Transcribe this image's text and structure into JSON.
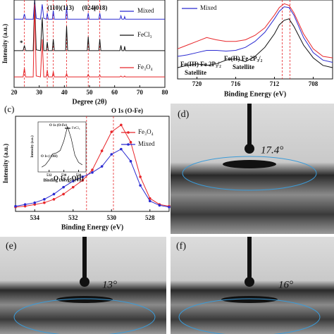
{
  "chart_data": [
    {
      "type": "line",
      "xlabel": "Degree (2θ)",
      "ylabel": "Intensity (a.u.)",
      "xlim": [
        20,
        80
      ],
      "ylim": [
        0,
        100
      ],
      "xticks": [
        20,
        30,
        40,
        50,
        60,
        70,
        80
      ],
      "x": [
        20,
        22,
        23.6,
        24.1,
        24.6,
        26,
        27.6,
        28.2,
        28.8,
        30.5,
        31.2,
        31.8,
        32.8,
        33.2,
        33.6,
        35.2,
        35.6,
        36,
        38,
        40.5,
        40.9,
        41.3,
        45,
        49.1,
        49.5,
        49.9,
        53.7,
        54.1,
        54.5,
        58,
        62.1,
        62.5,
        62.9,
        63.7,
        64,
        64.3,
        70,
        75,
        80
      ],
      "series": [
        {
          "name": "Mixed",
          "color": "#2b2bd1",
          "values": [
            78,
            78,
            78,
            84,
            78,
            78,
            78,
            100,
            79,
            78,
            95,
            79,
            78,
            85,
            78,
            78,
            88,
            78,
            78,
            78,
            92,
            78,
            78,
            78,
            85,
            78,
            78,
            85,
            78,
            78,
            78,
            82,
            78,
            78,
            81,
            78,
            78,
            78,
            78
          ]
        },
        {
          "name": "FeCl₃",
          "color": "#111111",
          "values": [
            42,
            42,
            42,
            48,
            42,
            42,
            42,
            100,
            43,
            42,
            80,
            42,
            42,
            52,
            42,
            42,
            55,
            42,
            42,
            42,
            70,
            42,
            42,
            42,
            58,
            42,
            42,
            55,
            42,
            42,
            42,
            48,
            42,
            42,
            47,
            42,
            42,
            42,
            42
          ]
        },
        {
          "name": "Fe₃O₄",
          "color": "#e8262a",
          "values": [
            12,
            12,
            12,
            22,
            12,
            12,
            12,
            95,
            13,
            12,
            55,
            12,
            12,
            20,
            12,
            12,
            18,
            12,
            12,
            12,
            16,
            12,
            12,
            12,
            15,
            12,
            12,
            14,
            12,
            12,
            12,
            13,
            12,
            12,
            13,
            12,
            12,
            12,
            12
          ]
        }
      ],
      "reference_lines": [
        24.1,
        33.2,
        35.6,
        40.9,
        49.5,
        54.1
      ],
      "peak_labels": [
        {
          "text": "(110)",
          "x": 35.6
        },
        {
          "text": "(113)",
          "x": 40.9
        },
        {
          "text": "(024)",
          "x": 49.5
        },
        {
          "text": "(018)",
          "x": 54.1
        }
      ],
      "annotations": [
        {
          "text": "*",
          "color": "#111111"
        }
      ]
    },
    {
      "type": "line",
      "xlabel": "Binding Energy (eV)",
      "xlim": [
        722,
        706
      ],
      "ylim": [
        0,
        105
      ],
      "xticks": [
        720,
        716,
        712,
        708
      ],
      "x": [
        722,
        721,
        720,
        719,
        718,
        717,
        716,
        715,
        714,
        713,
        712,
        711.5,
        711,
        710.5,
        710,
        709,
        708,
        707,
        706
      ],
      "series": [
        {
          "color": "#e8262a",
          "values": [
            40,
            45,
            50,
            55,
            52,
            50,
            50,
            52,
            58,
            68,
            85,
            95,
            100,
            98,
            88,
            60,
            40,
            30,
            28
          ]
        },
        {
          "name": "Mixed",
          "color": "#2b2bd1",
          "values": [
            30,
            32,
            35,
            38,
            38,
            37,
            38,
            42,
            50,
            62,
            80,
            90,
            96,
            95,
            85,
            55,
            35,
            25,
            22
          ]
        },
        {
          "color": "#111111",
          "values": [
            15,
            18,
            20,
            18,
            20,
            25,
            27,
            23,
            30,
            42,
            60,
            72,
            78,
            80,
            70,
            45,
            28,
            18,
            15
          ]
        }
      ],
      "reference_lines": [
        711.2,
        710.4
      ],
      "annotations": [
        {
          "text": "Fe(III) Fe 2P₃/₂",
          "color": "#e8262a"
        },
        {
          "text": "Satellite",
          "color": "#e8262a"
        },
        {
          "text": "Fe(II) Fe 2P₃/₂",
          "color": "#111111"
        },
        {
          "text": "Satellite",
          "color": "#111111"
        }
      ]
    },
    {
      "type": "line",
      "panel_label": "(c)",
      "xlabel": "Binding Energy (eV)",
      "ylabel": "Intensity (a.u.)",
      "xlim": [
        535,
        527
      ],
      "ylim": [
        0,
        110
      ],
      "xticks": [
        534,
        532,
        530,
        528
      ],
      "markers": true,
      "x": [
        535,
        534.5,
        534,
        533.5,
        533,
        532.5,
        532,
        531.5,
        531,
        530.5,
        530,
        529.5,
        529,
        528.5,
        528,
        527.5,
        527
      ],
      "series": [
        {
          "name": "Fe₃O₄",
          "color": "#e8262a",
          "values": [
            5,
            6,
            8,
            10,
            14,
            20,
            28,
            36,
            48,
            70,
            92,
            100,
            80,
            40,
            15,
            8,
            6
          ]
        },
        {
          "name": "Mixed",
          "color": "#2b2bd1",
          "values": [
            6,
            8,
            10,
            14,
            20,
            28,
            35,
            40,
            45,
            52,
            66,
            72,
            58,
            30,
            12,
            7,
            5
          ]
        }
      ],
      "reference_lines": [
        531.3,
        529.9
      ],
      "annotations": [
        {
          "text": "O 1s (O-Fe)",
          "color": "#111111"
        },
        {
          "text": "O 1s (-OH)",
          "color": "#111111"
        }
      ]
    },
    {
      "type": "line",
      "xlabel": "Binding Energy (eV)",
      "ylabel": "Intensity (a.u.)",
      "xlim": [
        533.5,
        527
      ],
      "ylim": [
        0,
        105
      ],
      "xticks": [
        532,
        530,
        528
      ],
      "x": [
        533,
        532.5,
        532,
        531.5,
        531,
        530.5,
        530,
        529.5,
        529,
        528.5,
        528,
        527.5
      ],
      "series": [
        {
          "name": "FeCl₃",
          "color": "#111111",
          "values": [
            10,
            15,
            25,
            38,
            40,
            45,
            65,
            95,
            70,
            35,
            20,
            15
          ]
        }
      ],
      "annotations": [
        {
          "text": "O 1s (O-Fe)",
          "color": "#111111"
        },
        {
          "text": "O 1s (-OH)",
          "color": "#111111"
        }
      ]
    }
  ],
  "images": [
    {
      "label": "(d)",
      "angle": "17.4°"
    },
    {
      "label": "(e)",
      "angle": "13°"
    },
    {
      "label": "(f)",
      "angle": "16°"
    }
  ]
}
